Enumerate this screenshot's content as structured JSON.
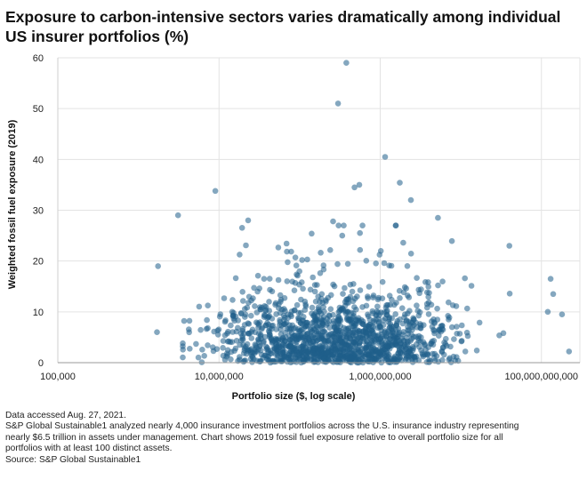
{
  "title": "Exposure to carbon-intensive sectors varies dramatically among individual US insurer portfolios (%)",
  "chart_data": {
    "type": "scatter",
    "xscale": "log",
    "xlim": [
      100000,
      300000000000
    ],
    "ylim": [
      0,
      60
    ],
    "xlabel": "Portfolio size ($, log scale)",
    "ylabel": "Weighted fossil fuel exposure (2019)",
    "xticks": [
      {
        "value": 100000,
        "label": "100,000"
      },
      {
        "value": 10000000,
        "label": "10,000,000"
      },
      {
        "value": 1000000000,
        "label": "1,000,000,000"
      },
      {
        "value": 100000000000,
        "label": "100,000,000,000"
      }
    ],
    "yticks": [
      0,
      10,
      20,
      30,
      40,
      50,
      60
    ],
    "point_color": "#1f5f8b",
    "grid": true,
    "highlighted_points": [
      {
        "x": 380000000,
        "y": 59
      },
      {
        "x": 300000000,
        "y": 51
      },
      {
        "x": 1150000000,
        "y": 40.5
      },
      {
        "x": 2400000000,
        "y": 32
      },
      {
        "x": 9000000,
        "y": 33.8
      },
      {
        "x": 3100000,
        "y": 29
      },
      {
        "x": 23000000,
        "y": 28
      },
      {
        "x": 260000000,
        "y": 27.8
      },
      {
        "x": 550000000,
        "y": 35
      },
      {
        "x": 1750000000,
        "y": 35.4
      },
      {
        "x": 480000000,
        "y": 34.5
      },
      {
        "x": 560000000,
        "y": 25.5
      },
      {
        "x": 5200000000,
        "y": 28.5
      },
      {
        "x": 40000000000,
        "y": 23
      },
      {
        "x": 130000000000,
        "y": 16.5
      },
      {
        "x": 220000000000,
        "y": 2.2
      },
      {
        "x": 1750000,
        "y": 19
      },
      {
        "x": 1700000,
        "y": 6
      },
      {
        "x": 120000000000,
        "y": 10
      },
      {
        "x": 180000000000,
        "y": 9.5
      },
      {
        "x": 140000000000,
        "y": 13.5
      }
    ]
  },
  "notes": {
    "line1": "Data accessed Aug. 27, 2021.",
    "line2": "S&P Global Sustainable1 analyzed nearly 4,000 insurance investment portfolios across the U.S. insurance industry representing",
    "line3": "nearly $6.5 trillion in assets under management. Chart shows 2019 fossil fuel exposure relative to overall portfolio size for all",
    "line4": "portfolios with at least 100 distinct assets.",
    "line5": "Source: S&P Global Sustainable1"
  }
}
